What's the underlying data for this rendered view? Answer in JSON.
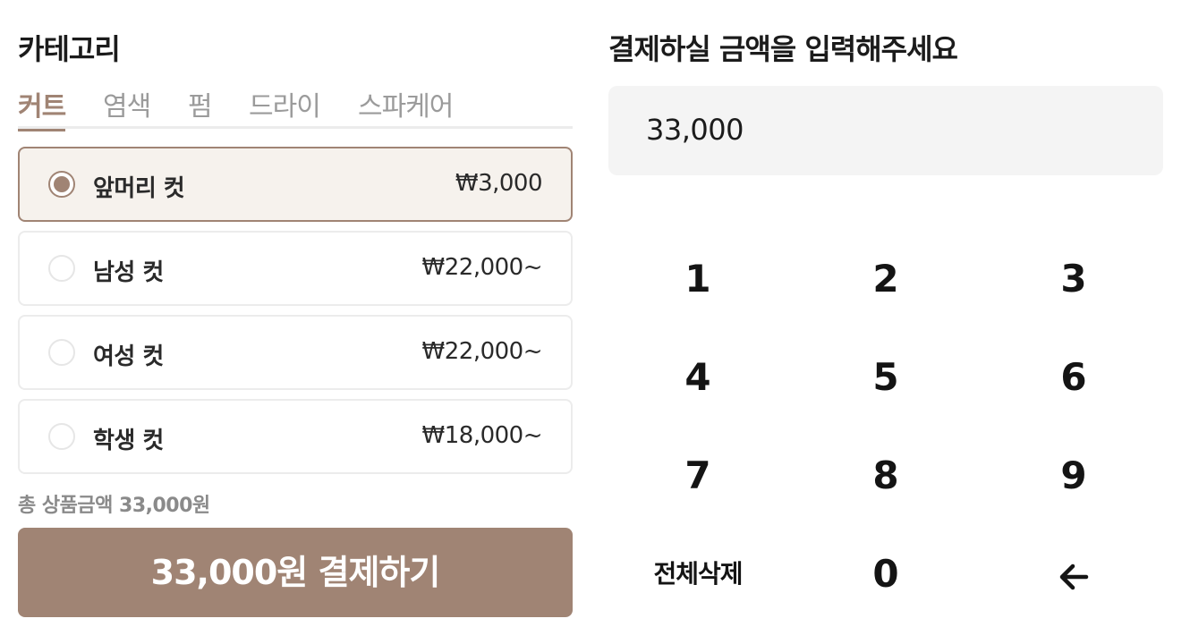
{
  "category": {
    "title": "카테고리",
    "tabs": [
      "커트",
      "염색",
      "펌",
      "드라이",
      "스파케어"
    ],
    "active_tab": "커트"
  },
  "options": [
    {
      "name": "앞머리 컷",
      "price": "₩3,000",
      "selected": true
    },
    {
      "name": "남성 컷",
      "price": "₩22,000~",
      "selected": false
    },
    {
      "name": "여성 컷",
      "price": "₩22,000~",
      "selected": false
    },
    {
      "name": "학생 컷",
      "price": "₩18,000~",
      "selected": false
    }
  ],
  "summary": {
    "total_text": "총 상품금액 33,000원",
    "pay_button": "33,000원 결제하기"
  },
  "amount": {
    "title": "결제하실 금액을 입력해주세요",
    "value": "33,000"
  },
  "keypad": {
    "keys": [
      "1",
      "2",
      "3",
      "4",
      "5",
      "6",
      "7",
      "8",
      "9",
      "전체삭제",
      "0"
    ],
    "backspace_icon": "arrow-left-icon"
  },
  "colors": {
    "accent": "#a08474",
    "selected_bg": "#f6f2ed",
    "input_bg": "#f4f4f4"
  }
}
